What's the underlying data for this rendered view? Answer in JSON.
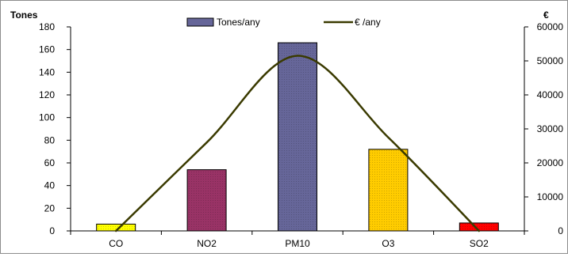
{
  "chart_data": {
    "type": "bar",
    "title": "",
    "xlabel": "",
    "ylabel": "Tones",
    "y2label": "€",
    "categories": [
      "CO",
      "NO2",
      "PM10",
      "O3",
      "SO2"
    ],
    "ylim": [
      0,
      180
    ],
    "y_ticks": [
      0,
      20,
      40,
      60,
      80,
      100,
      120,
      140,
      160,
      180
    ],
    "y2lim": [
      0,
      60000
    ],
    "y2_ticks": [
      0,
      10000,
      20000,
      30000,
      40000,
      50000,
      60000
    ],
    "grid": false,
    "legend_position": "top",
    "series": [
      {
        "name": "Tones/any",
        "kind": "bar",
        "axis": "left",
        "values": [
          6,
          54,
          166,
          72,
          7
        ],
        "colors": [
          "#ffff00",
          "#993366",
          "#666699",
          "#ffcc00",
          "#ff0000"
        ],
        "legend_color": "#666699"
      },
      {
        "name": "€ /any",
        "kind": "line",
        "axis": "right",
        "values": [
          0,
          26000,
          51500,
          27500,
          0
        ],
        "color": "#3a3a00"
      }
    ]
  }
}
